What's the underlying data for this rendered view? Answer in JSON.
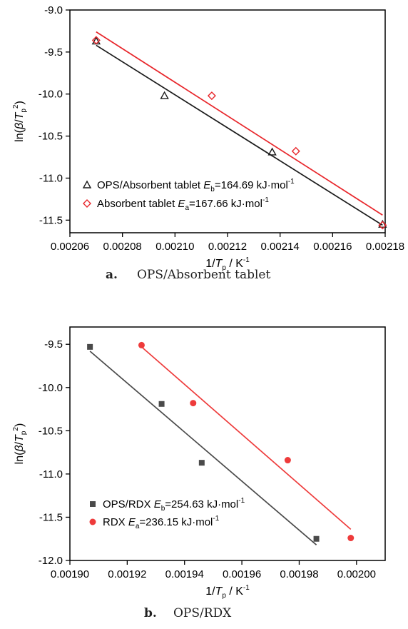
{
  "chart_data": [
    {
      "type": "scatter",
      "title": "",
      "caption_letter": "a.",
      "caption_text": "OPS/Absorbent tablet",
      "xlabel": {
        "pre": "1/",
        "var": "T",
        "sub": "p",
        "post": " / K",
        "sup": "-1"
      },
      "ylabel": {
        "pre": "ln(",
        "v1": "β",
        "slash": "/",
        "v2": "T",
        "sub": "p",
        "sup": "2",
        "post": ")"
      },
      "xlim": [
        0.00206,
        0.00218
      ],
      "ylim": [
        -11.65,
        -9.0
      ],
      "xticks": [
        "0.00206",
        "0.00208",
        "0.00210",
        "0.00212",
        "0.00214",
        "0.00216",
        "0.00218"
      ],
      "yticks": [
        "-9.0",
        "-9.5",
        "-10.0",
        "-10.5",
        "-11.0",
        "-11.5"
      ],
      "legend_position": "bottom-left",
      "grid": false,
      "series": [
        {
          "name": "OPS/Absorbent tablet",
          "legend_suffix": " =164.69 kJ·mol",
          "legend_var": "E",
          "legend_sub": "b",
          "legend_sup": "-1",
          "marker": "triangle",
          "color": "#1a1a1a",
          "x": [
            0.00207,
            0.002096,
            0.002137,
            0.002179
          ],
          "y": [
            -9.37,
            -10.02,
            -10.69,
            -11.55
          ],
          "fit": {
            "x": [
              0.00207,
              0.002179
            ],
            "y": [
              -9.42,
              -11.56
            ]
          }
        },
        {
          "name": "Absorbent tablet",
          "legend_suffix": " =167.66 kJ·mol",
          "legend_var": "E",
          "legend_sub": "a",
          "legend_sup": "-1",
          "marker": "diamond",
          "color": "#e8262b",
          "x": [
            0.00207,
            0.002114,
            0.002146,
            0.002179
          ],
          "y": [
            -9.36,
            -10.02,
            -10.68,
            -11.56
          ],
          "fit": {
            "x": [
              0.00207,
              0.002179
            ],
            "y": [
              -9.26,
              -11.44
            ]
          }
        }
      ]
    },
    {
      "type": "scatter",
      "title": "",
      "caption_letter": "b.",
      "caption_text": "OPS/RDX",
      "xlabel": {
        "pre": "1/",
        "var": "T",
        "sub": "p",
        "post": " / K",
        "sup": "-1"
      },
      "ylabel": {
        "pre": "ln(",
        "v1": "β",
        "slash": "/",
        "v2": "T",
        "sub": "p",
        "sup": "2",
        "post": ")"
      },
      "xlim": [
        0.0019,
        0.00201
      ],
      "ylim": [
        -12.0,
        -9.3
      ],
      "xticks": [
        "0.00190",
        "0.00192",
        "0.00194",
        "0.00196",
        "0.00198",
        "0.00200"
      ],
      "yticks": [
        "-9.5",
        "-10.0",
        "-10.5",
        "-11.0",
        "-11.5",
        "-12.0"
      ],
      "legend_position": "bottom-left",
      "grid": false,
      "series": [
        {
          "name": "OPS/RDX",
          "legend_suffix": " =254.63 kJ·mol",
          "legend_var": "E",
          "legend_sub": "b",
          "legend_sup": "-1",
          "marker": "square",
          "color": "#4a4a4a",
          "x": [
            0.001907,
            0.001932,
            0.001946,
            0.001986
          ],
          "y": [
            -9.53,
            -10.19,
            -10.87,
            -11.75
          ],
          "fit": {
            "x": [
              0.001907,
              0.001986
            ],
            "y": [
              -9.58,
              -11.82
            ]
          }
        },
        {
          "name": "RDX",
          "legend_suffix": " =236.15 kJ·mol",
          "legend_var": "E",
          "legend_sub": "a",
          "legend_sup": "-1",
          "marker": "circle",
          "color": "#ee3b3b",
          "x": [
            0.001925,
            0.001943,
            0.001976,
            0.001998
          ],
          "y": [
            -9.51,
            -10.18,
            -10.84,
            -11.74
          ],
          "fit": {
            "x": [
              0.001925,
              0.001998
            ],
            "y": [
              -9.53,
              -11.64
            ]
          }
        }
      ]
    }
  ]
}
